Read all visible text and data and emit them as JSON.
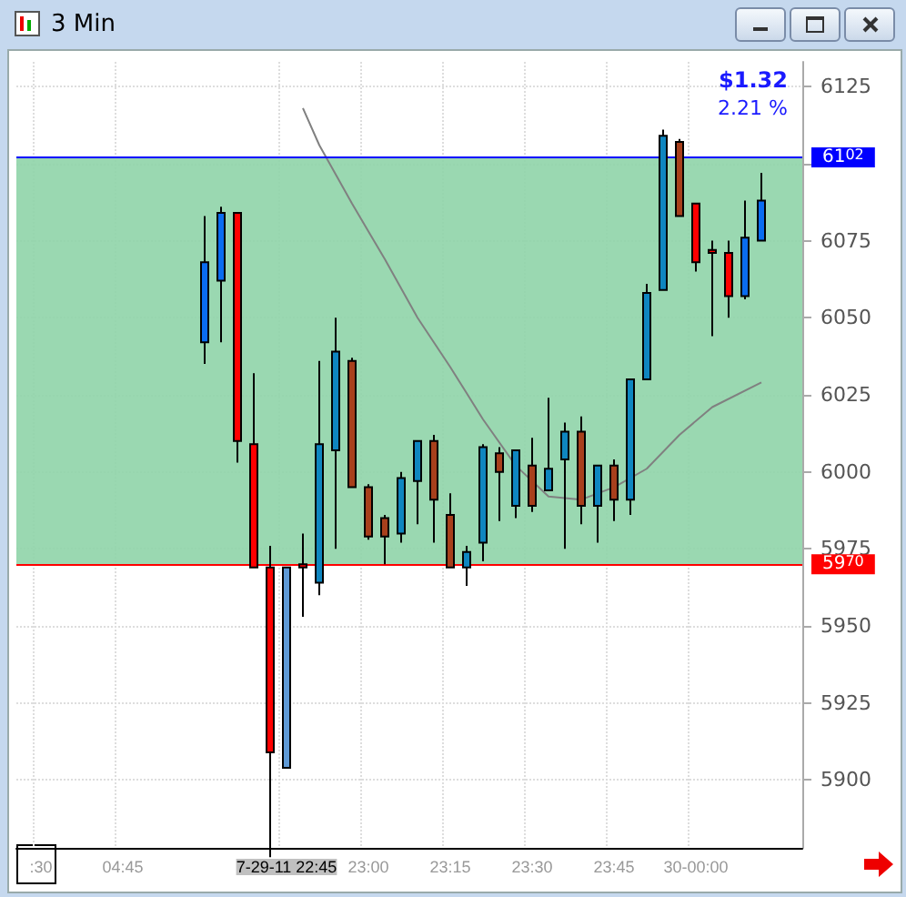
{
  "chart_data": {
    "type": "candlestick",
    "title": "3 Min",
    "categories": [
      null,
      ":30",
      null,
      null,
      null,
      null,
      "04:45",
      null,
      null,
      null,
      null,
      null,
      null,
      null,
      null,
      null,
      "7-29-11 22:45",
      null,
      null,
      null,
      null,
      "23:00",
      null,
      null,
      null,
      null,
      "23:15",
      null,
      null,
      null,
      null,
      "23:30",
      null,
      null,
      null,
      null,
      "23:45",
      null,
      null,
      null,
      null,
      "30-00:00",
      null,
      null,
      null,
      null,
      null,
      null
    ],
    "ohlc": [
      null,
      null,
      null,
      null,
      null,
      null,
      null,
      null,
      null,
      null,
      null,
      [
        6042,
        6083,
        6035,
        6068
      ],
      [
        6062,
        6086,
        6042,
        6084
      ],
      [
        6084,
        6084,
        6003,
        6010
      ],
      [
        6009,
        6032,
        5969,
        5969
      ],
      [
        5969,
        5976,
        5875,
        5909
      ],
      [
        5904,
        5969,
        5904,
        5969
      ],
      [
        5970,
        5980,
        5953,
        5969
      ],
      [
        5964,
        6036,
        5960,
        6009
      ],
      [
        6007,
        6050,
        5975,
        6039
      ],
      [
        6036,
        6037,
        5995,
        5995
      ],
      [
        5995,
        5996,
        5978,
        5979
      ],
      [
        5985,
        5986,
        5970,
        5979
      ],
      [
        5980,
        6000,
        5977,
        5998
      ],
      [
        5997,
        6010,
        5983,
        6010
      ],
      [
        6010,
        6012,
        5977,
        5991
      ],
      [
        5986,
        5993,
        5969,
        5969
      ],
      [
        5969,
        5976,
        5963,
        5974
      ],
      [
        5977,
        6009,
        5971,
        6008
      ],
      [
        6006,
        6008,
        5984,
        6000
      ],
      [
        5989,
        6007,
        5985,
        6007
      ],
      [
        6002,
        6011,
        5987,
        5989
      ],
      [
        5994,
        6024,
        5994,
        6001
      ],
      [
        6004,
        6016,
        5975,
        6013
      ],
      [
        6013,
        6018,
        5983,
        5989
      ],
      [
        5989,
        6002,
        5977,
        6002
      ],
      [
        6002,
        6004,
        5984,
        5991
      ],
      [
        5991,
        6030,
        5986,
        6030
      ],
      [
        6030,
        6061,
        6030,
        6058
      ],
      [
        6059,
        6111,
        6059,
        6109
      ],
      [
        6107,
        6108,
        6083,
        6083
      ],
      [
        6087,
        6087,
        6065,
        6068
      ],
      [
        6072,
        6075,
        6044,
        6071
      ],
      [
        6071,
        6075,
        6050,
        6057
      ],
      [
        6057,
        6088,
        6056,
        6076
      ],
      [
        6075,
        6097,
        6075,
        6088
      ],
      null,
      null
    ],
    "colors": [
      null,
      null,
      null,
      null,
      null,
      null,
      null,
      null,
      null,
      null,
      null,
      "#0a6cf0",
      "#0a6cf0",
      "#ff0000",
      "#ff0000",
      "#ff0000",
      "#5f9ad6",
      "#ff0000",
      "#0f86c0",
      "#0f86c0",
      "#a8401c",
      "#a8401c",
      "#a8401c",
      "#0f86c0",
      "#0f86c0",
      "#a8401c",
      "#a8401c",
      "#0f86c0",
      "#0f86c0",
      "#a8401c",
      "#0f86c0",
      "#a8401c",
      "#0f86c0",
      "#0f86c0",
      "#a8401c",
      "#0f86c0",
      "#a8401c",
      "#0f86c0",
      "#0f86c0",
      "#0f86c0",
      "#a8401c",
      "#ff0000",
      "#ff0000",
      "#ff0000",
      "#0a6cf0",
      "#0a6cf0",
      null,
      null
    ],
    "series": [
      {
        "type": "line",
        "color": "#808080",
        "values": [
          null,
          null,
          null,
          null,
          null,
          null,
          null,
          null,
          null,
          null,
          null,
          null,
          null,
          null,
          null,
          null,
          null,
          6118,
          6106,
          null,
          6087,
          null,
          6069,
          null,
          6050,
          null,
          6034,
          null,
          6017,
          null,
          6002,
          null,
          5992,
          null,
          5991,
          null,
          5995,
          null,
          6001,
          null,
          6012,
          null,
          6021,
          null,
          null,
          6029,
          null,
          null
        ]
      }
    ],
    "ylim": [
      5878,
      6133
    ],
    "yticks": [
      5900,
      5925,
      5950,
      5975,
      6000,
      6025,
      6050,
      6075,
      {
        "value": 6100,
        "label": null
      },
      6125
    ],
    "ref_lines": [
      {
        "axis": "y",
        "value": 6102,
        "label": "6102",
        "color": "#0000ff"
      },
      {
        "axis": "y",
        "value": 5970,
        "label": "5970",
        "color": "#ff0000"
      }
    ],
    "bands": [
      {
        "axis": "y",
        "from": 5970,
        "to": 6102,
        "color": "#8fd4a8"
      }
    ],
    "annotations": [
      "$1.32",
      "2.21 %"
    ],
    "grid": true,
    "marker": "none"
  }
}
